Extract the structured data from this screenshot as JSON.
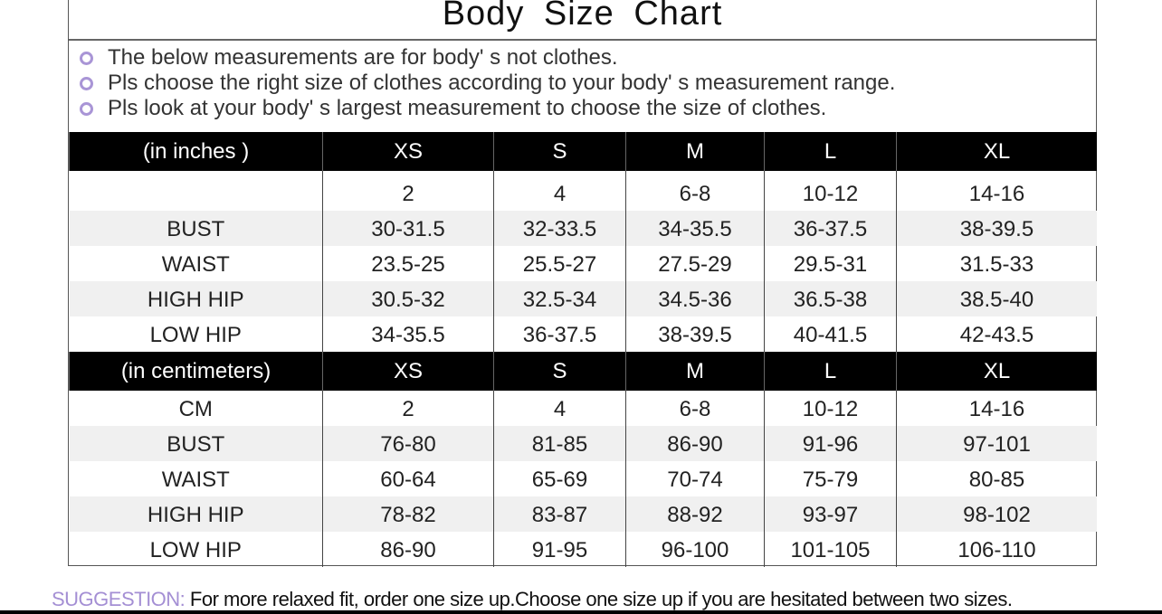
{
  "title": "Body  Size  Chart",
  "notes": [
    "The below measurements are for  body' s not clothes.",
    "Pls choose the right size of clothes according to your body' s  measurement range.",
    "Pls look  at your body' s  largest measurement to choose the size of clothes."
  ],
  "inches": {
    "header": [
      "(in  inches )",
      "XS",
      "S",
      "M",
      "L",
      "XL"
    ],
    "rows": [
      [
        "",
        "2",
        "4",
        "6-8",
        "10-12",
        "14-16"
      ],
      [
        "BUST",
        "30-31.5",
        "32-33.5",
        "34-35.5",
        "36-37.5",
        "38-39.5"
      ],
      [
        "WAIST",
        "23.5-25",
        "25.5-27",
        "27.5-29",
        "29.5-31",
        "31.5-33"
      ],
      [
        "HIGH HIP",
        "30.5-32",
        "32.5-34",
        "34.5-36",
        "36.5-38",
        "38.5-40"
      ],
      [
        "LOW HIP",
        "34-35.5",
        "36-37.5",
        "38-39.5",
        "40-41.5",
        "42-43.5"
      ]
    ]
  },
  "cm": {
    "header": [
      "(in centimeters)",
      "XS",
      "S",
      "M",
      "L",
      "XL"
    ],
    "rows": [
      [
        "CM",
        "2",
        "4",
        "6-8",
        "10-12",
        "14-16"
      ],
      [
        "BUST",
        "76-80",
        "81-85",
        "86-90",
        "91-96",
        "97-101"
      ],
      [
        "WAIST",
        "60-64",
        "65-69",
        "70-74",
        "75-79",
        "80-85"
      ],
      [
        "HIGH HIP",
        "78-82",
        "83-87",
        "88-92",
        "93-97",
        "98-102"
      ],
      [
        "LOW HIP",
        "86-90",
        "91-95",
        "96-100",
        "101-105",
        "106-110"
      ]
    ]
  },
  "suggestion": {
    "label": "SUGGESTION:",
    "text": " For more relaxed fit, order one size up.Choose one size up if you are hesitated between two sizes."
  },
  "colors": {
    "accent": "#a48fd4",
    "header_bg": "#000000"
  }
}
